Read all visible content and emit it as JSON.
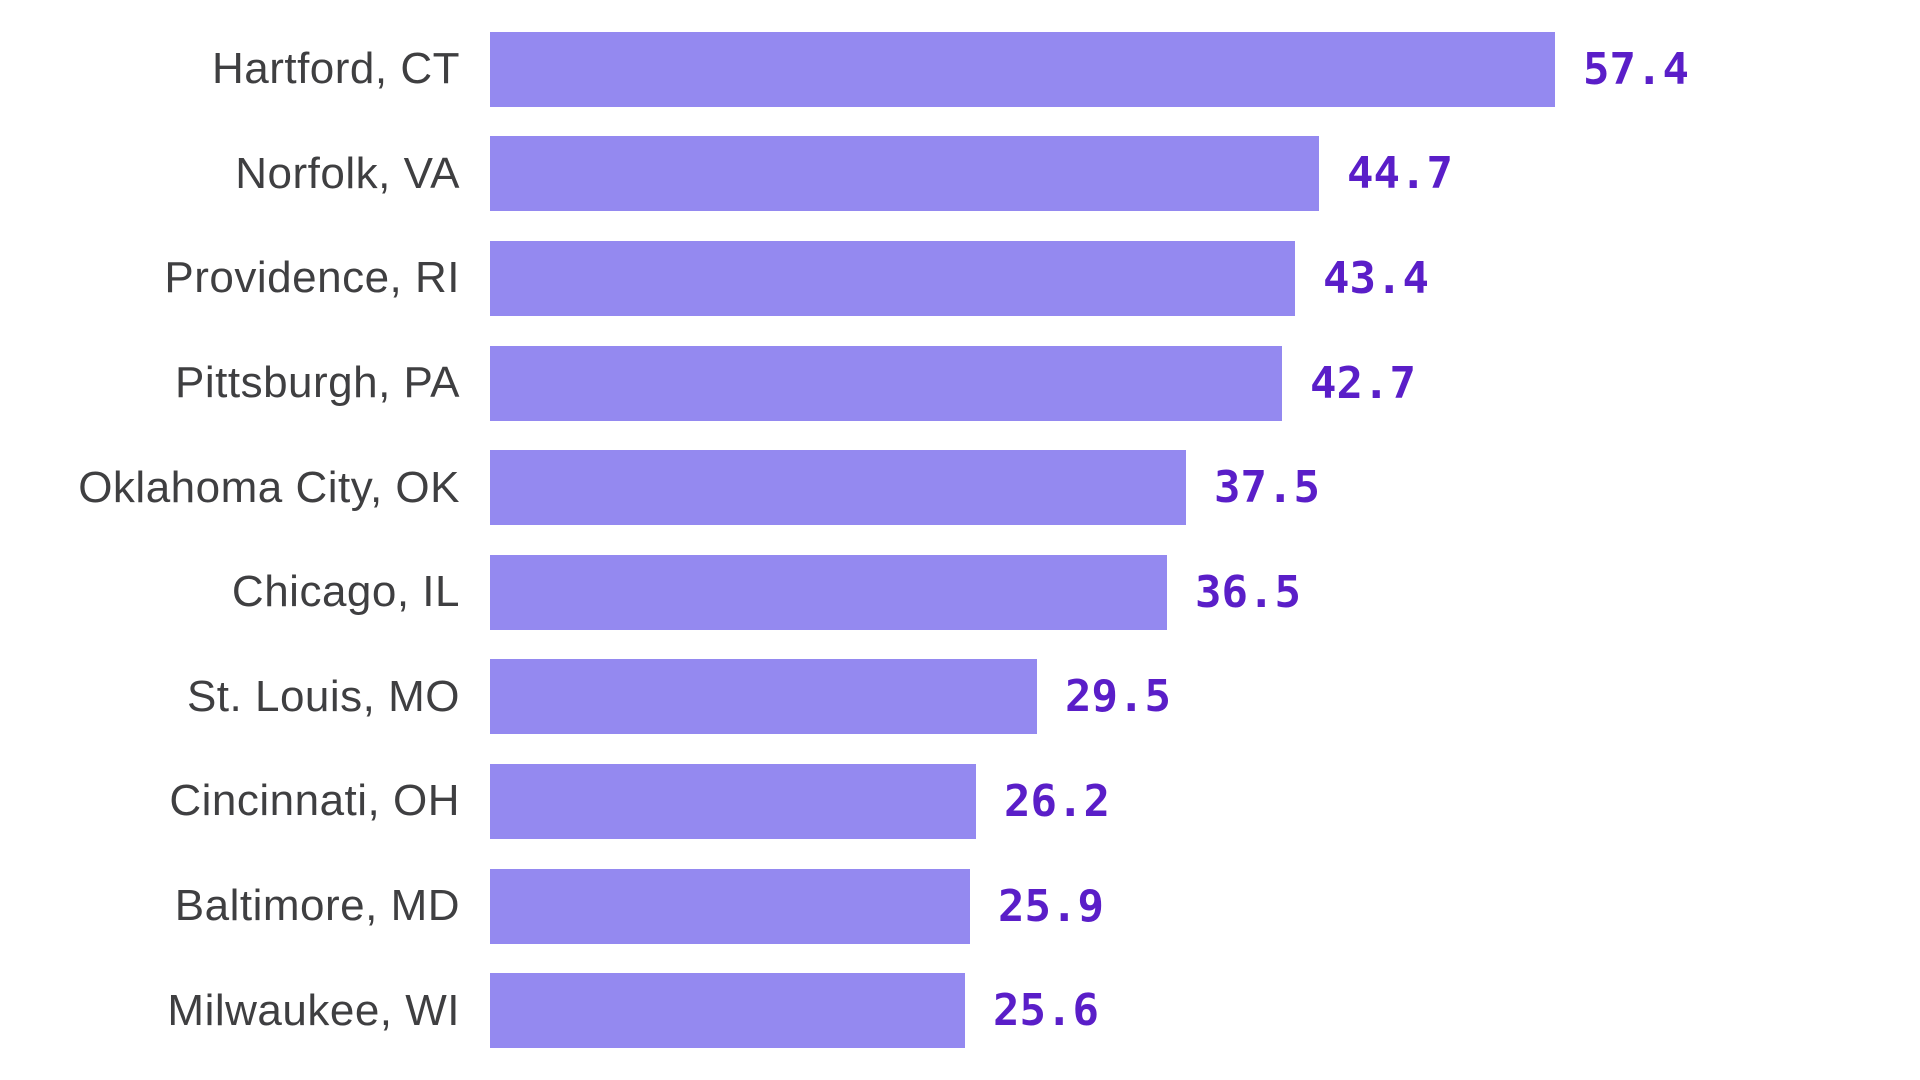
{
  "chart_data": {
    "type": "bar",
    "orientation": "horizontal",
    "title": "",
    "xlabel": "",
    "ylabel": "",
    "categories": [
      "Hartford, CT",
      "Norfolk, VA",
      "Providence, RI",
      "Pittsburgh, PA",
      "Oklahoma City, OK",
      "Chicago, IL",
      "St. Louis, MO",
      "Cincinnati, OH",
      "Baltimore, MD",
      "Milwaukee, WI"
    ],
    "values": [
      57.4,
      44.7,
      43.4,
      42.7,
      37.5,
      36.5,
      29.5,
      26.2,
      25.9,
      25.6
    ],
    "value_labels": [
      "57.4",
      "44.7",
      "43.4",
      "42.7",
      "37.5",
      "36.5",
      "29.5",
      "26.2",
      "25.9",
      "25.6"
    ],
    "xlim": [
      0,
      60
    ],
    "grid": false,
    "legend": false,
    "bar_color": "#9489f0",
    "value_label_color": "#5a1ec8",
    "category_label_color": "#3f3f41",
    "background_color": "#ffffff"
  }
}
